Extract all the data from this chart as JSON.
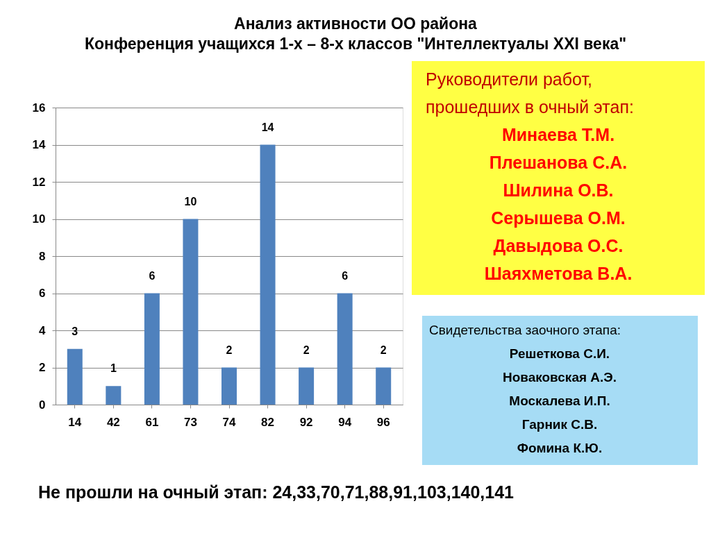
{
  "chart_data": {
    "type": "bar",
    "title": "Анализ активности ОО района",
    "subtitle": "Конференция учащихся 1-х – 8-х классов \"Интеллектуалы XXI века\"",
    "categories": [
      "14",
      "42",
      "61",
      "73",
      "74",
      "82",
      "92",
      "94",
      "96"
    ],
    "values": [
      3,
      1,
      6,
      10,
      2,
      14,
      2,
      6,
      2
    ],
    "color": "#4f81bd",
    "ylim": [
      0,
      16
    ],
    "yticks": [
      0,
      2,
      4,
      6,
      8,
      10,
      12,
      14,
      16
    ],
    "grid": "y",
    "data_labels": true,
    "annotations": [
      "Руководители работ,\nпрошедших в очный этап:\nМинаева Т.М.\nПлешанова С.А.\nШилина О.В.\nСерышева О.М.\nДавыдова О.С.\nШаяхметова В.А.",
      "Свидетельства заочного этапа:\nРешеткова С.И.\nНоваковская А.Э.\nМоскалева И.П.\nГарник С.В.\nФомина К.Ю.",
      "Не прошли на очный этап: 24,33,70,71,88,91,103,140,141"
    ]
  }
}
